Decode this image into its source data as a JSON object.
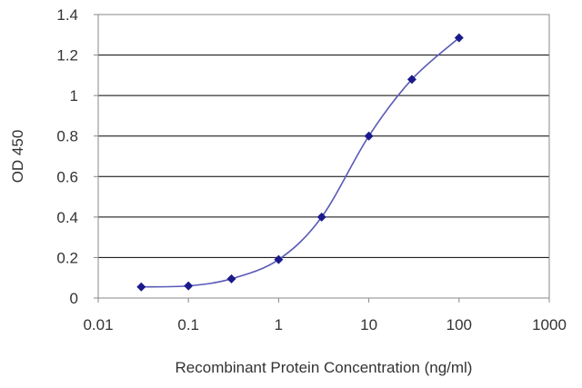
{
  "chart_data": {
    "type": "line",
    "title": "",
    "xlabel": "Recombinant Protein Concentration (ng/ml)",
    "ylabel": "OD 450",
    "xscale": "log",
    "xlim": [
      0.01,
      1000
    ],
    "ylim": [
      0,
      1.4
    ],
    "xticks": [
      "0.01",
      "0.1",
      "1",
      "10",
      "100",
      "1000"
    ],
    "yticks": [
      "0",
      "0.2",
      "0.4",
      "0.6",
      "0.8",
      "1",
      "1.2",
      "1.4"
    ],
    "grid": "horizontal",
    "series": [
      {
        "x": [
          0.03,
          0.1,
          0.3,
          1,
          3,
          10,
          30,
          100
        ],
        "y": [
          0.055,
          0.06,
          0.095,
          0.19,
          0.4,
          0.8,
          1.08,
          1.285
        ]
      }
    ],
    "line_color": "#5a5ab8",
    "marker_color": "#1a1a8c",
    "grid_color": "#000000"
  }
}
